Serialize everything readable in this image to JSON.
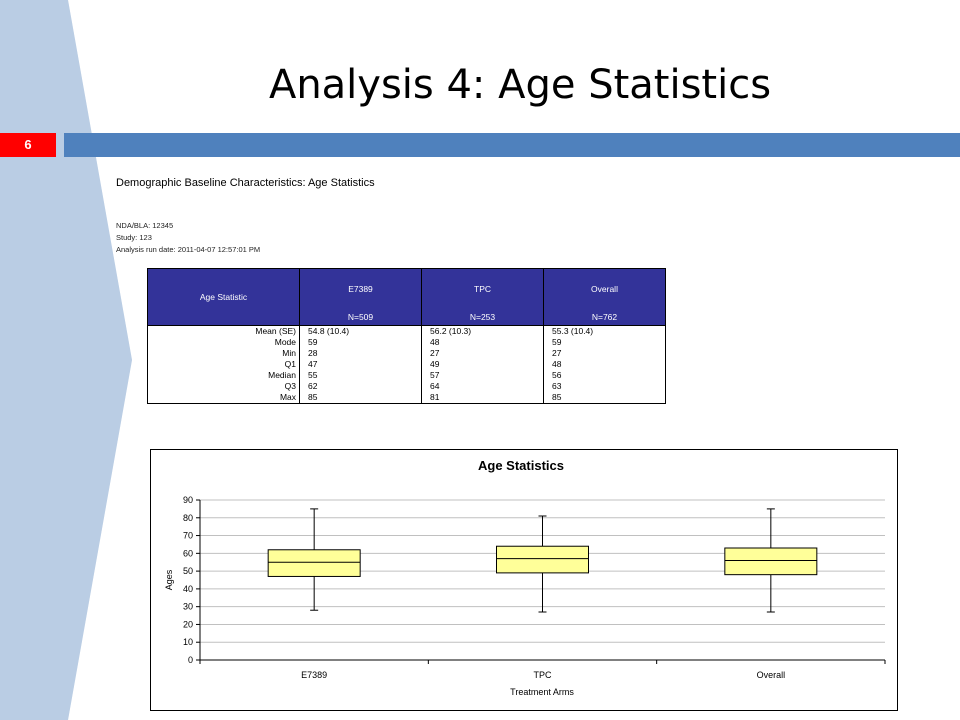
{
  "slide": {
    "title": "Analysis 4: Age Statistics",
    "number": "6"
  },
  "report": {
    "title": "Demographic Baseline Characteristics: Age Statistics",
    "meta": [
      "NDA/BLA: 12345",
      "Study: 123",
      "Analysis run date: 2011-04-07 12:57:01 PM"
    ]
  },
  "table": {
    "stat_header": "Age Statistic",
    "columns": [
      {
        "name": "E7389",
        "n": "N=509"
      },
      {
        "name": "TPC",
        "n": "N=253"
      },
      {
        "name": "Overall",
        "n": "N=762"
      }
    ],
    "rows": [
      {
        "label": "Mean (SE)",
        "values": [
          "54.8 (10.4)",
          "56.2 (10.3)",
          "55.3 (10.4)"
        ]
      },
      {
        "label": "Mode",
        "values": [
          "59",
          "48",
          "59"
        ]
      },
      {
        "label": "Min",
        "values": [
          "28",
          "27",
          "27"
        ]
      },
      {
        "label": "Q1",
        "values": [
          "47",
          "49",
          "48"
        ]
      },
      {
        "label": "Median",
        "values": [
          "55",
          "57",
          "56"
        ]
      },
      {
        "label": "Q3",
        "values": [
          "62",
          "64",
          "63"
        ]
      },
      {
        "label": "Max",
        "values": [
          "85",
          "81",
          "85"
        ]
      }
    ]
  },
  "chart_data": {
    "type": "boxplot",
    "title": "Age Statistics",
    "xlabel": "Treatment Arms",
    "ylabel": "Ages",
    "ylim": [
      0,
      90
    ],
    "yticks": [
      0,
      10,
      20,
      30,
      40,
      50,
      60,
      70,
      80,
      90
    ],
    "grid": true,
    "categories": [
      "E7389",
      "TPC",
      "Overall"
    ],
    "boxes": [
      {
        "min": 28,
        "q1": 47,
        "median": 55,
        "q3": 62,
        "max": 85
      },
      {
        "min": 27,
        "q1": 49,
        "median": 57,
        "q3": 64,
        "max": 81
      },
      {
        "min": 27,
        "q1": 48,
        "median": 56,
        "q3": 63,
        "max": 85
      }
    ],
    "colors": {
      "box_fill": "#ffff99",
      "grid": "#c0c0c0",
      "line": "#000000"
    }
  },
  "colors": {
    "header_bar": "#4f81bd",
    "slide_number_bg": "#ff0000",
    "table_header_bg": "#333399",
    "sidebar_light": "#c5d5e8",
    "sidebar_mid": "#a7bfdc"
  }
}
